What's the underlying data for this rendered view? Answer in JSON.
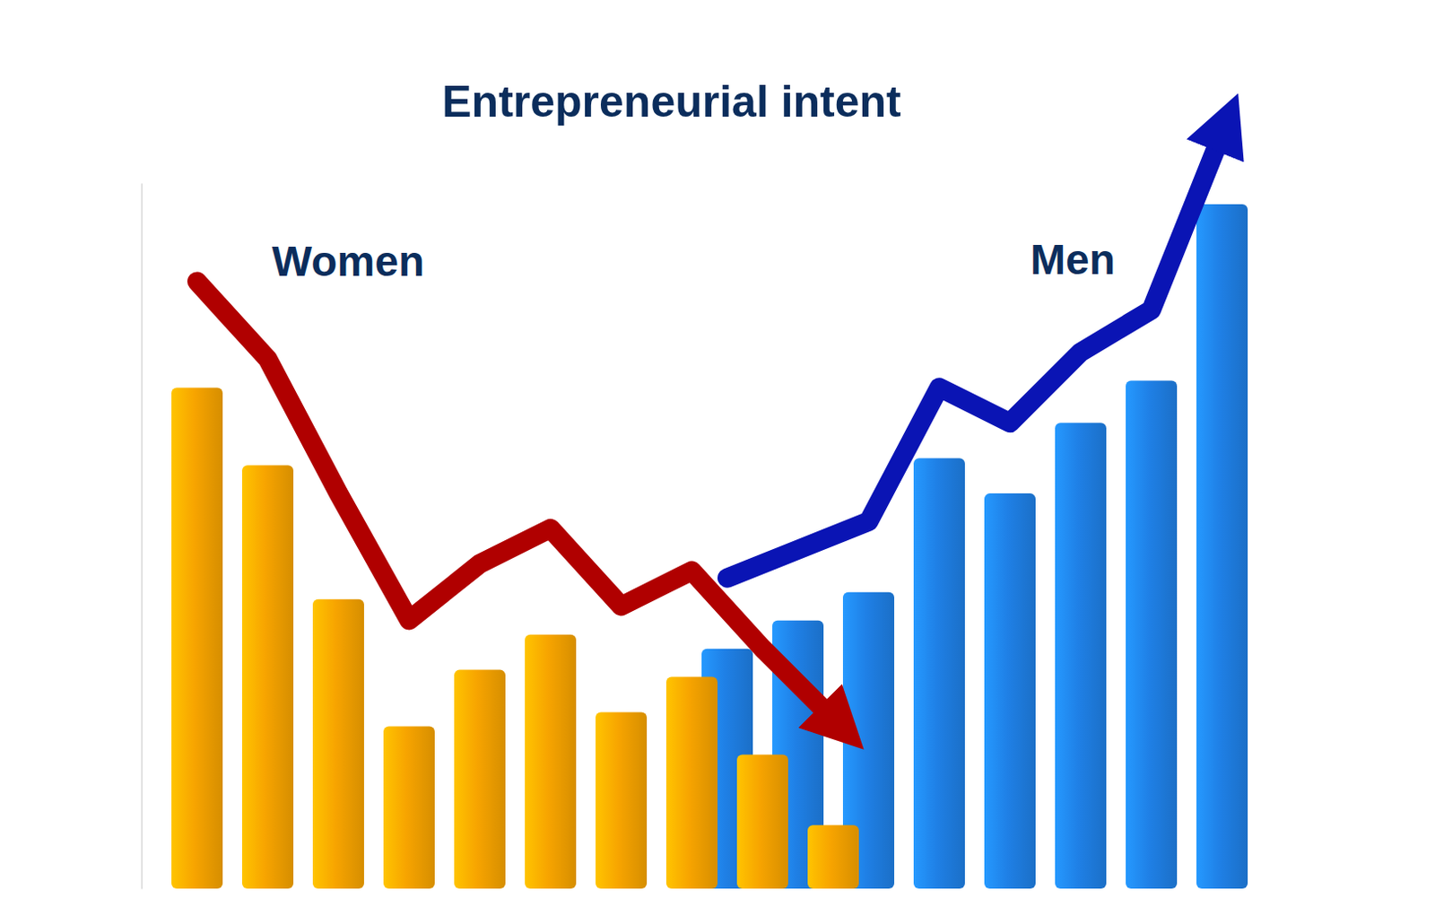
{
  "chart_data": {
    "type": "bar",
    "title": "Entrepreneurial intent",
    "categories": [
      null,
      null,
      null,
      null,
      null,
      null,
      null,
      null,
      null,
      null,
      null,
      null,
      null,
      null,
      null
    ],
    "ylim": [
      0,
      100
    ],
    "tick_labels": false,
    "series": [
      {
        "name": "Women",
        "color": "#f7a400",
        "values": [
          71,
          60,
          41,
          23,
          31,
          36,
          25,
          30,
          19,
          9,
          null,
          null,
          null,
          null,
          null
        ]
      },
      {
        "name": "Men",
        "color": "#1f80e6",
        "values": [
          null,
          null,
          null,
          null,
          null,
          null,
          null,
          34,
          38,
          42,
          61,
          56,
          66,
          72,
          97
        ]
      }
    ]
  }
}
